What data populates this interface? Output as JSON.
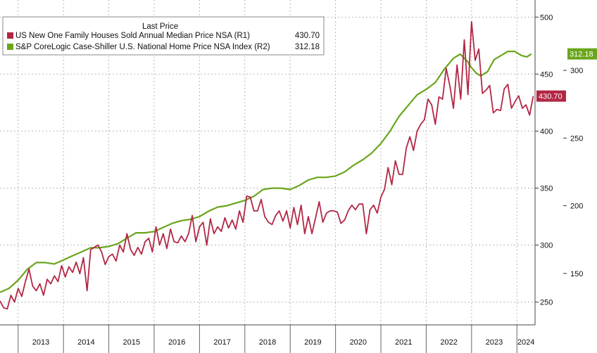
{
  "chart_data": {
    "type": "line",
    "legend": {
      "title": "Last Price",
      "position": "top-left",
      "entries": [
        {
          "label": "US New One Family Houses Sold Annual Median Price NSA  (R1)",
          "value": "430.70",
          "color": "#b22744"
        },
        {
          "label": "S&P CoreLogic Case-Shiller U.S. National Home Price NSA Index  (R2)",
          "value": "312.18",
          "color": "#6aa51c"
        }
      ]
    },
    "x_ticks": [
      "2013",
      "2014",
      "2015",
      "2016",
      "2017",
      "2018",
      "2019",
      "2020",
      "2021",
      "2022",
      "2023",
      "2024"
    ],
    "x_range": [
      2012.6,
      2024.4
    ],
    "y_axis_R1": {
      "ticks": [
        "500",
        "450",
        "400",
        "350",
        "300",
        "250"
      ],
      "range": [
        230,
        515
      ],
      "grid": true
    },
    "y_axis_R2": {
      "ticks": [
        "300",
        "250",
        "200",
        "150"
      ],
      "range": [
        112,
        352
      ]
    },
    "last_value_tags": [
      {
        "series": "R1",
        "text": "430.70",
        "value": 430.7,
        "color": "#b22744"
      },
      {
        "series": "R2",
        "text": "312.18",
        "value": 312.18,
        "color": "#6aa51c"
      }
    ],
    "series": [
      {
        "name": "US New One Family Houses Sold Annual Median Price NSA  (R1)",
        "axis": "R1",
        "color": "#b22744",
        "points": [
          [
            2012.6,
            251
          ],
          [
            2012.68,
            245
          ],
          [
            2012.76,
            244
          ],
          [
            2012.84,
            256
          ],
          [
            2012.92,
            250
          ],
          [
            2013.0,
            262
          ],
          [
            2013.08,
            255
          ],
          [
            2013.16,
            268
          ],
          [
            2013.24,
            279
          ],
          [
            2013.32,
            264
          ],
          [
            2013.4,
            260
          ],
          [
            2013.48,
            266
          ],
          [
            2013.56,
            256
          ],
          [
            2013.64,
            270
          ],
          [
            2013.72,
            266
          ],
          [
            2013.8,
            273
          ],
          [
            2013.88,
            268
          ],
          [
            2013.96,
            282
          ],
          [
            2014.04,
            272
          ],
          [
            2014.12,
            281
          ],
          [
            2014.2,
            276
          ],
          [
            2014.28,
            285
          ],
          [
            2014.36,
            275
          ],
          [
            2014.44,
            289
          ],
          [
            2014.52,
            260
          ],
          [
            2014.6,
            296
          ],
          [
            2014.68,
            298
          ],
          [
            2014.76,
            300
          ],
          [
            2014.84,
            294
          ],
          [
            2014.92,
            283
          ],
          [
            2015.0,
            290
          ],
          [
            2015.08,
            292
          ],
          [
            2015.16,
            286
          ],
          [
            2015.24,
            300
          ],
          [
            2015.32,
            294
          ],
          [
            2015.4,
            310
          ],
          [
            2015.48,
            296
          ],
          [
            2015.56,
            291
          ],
          [
            2015.64,
            298
          ],
          [
            2015.72,
            292
          ],
          [
            2015.8,
            303
          ],
          [
            2015.88,
            306
          ],
          [
            2015.96,
            294
          ],
          [
            2016.04,
            316
          ],
          [
            2016.12,
            300
          ],
          [
            2016.2,
            310
          ],
          [
            2016.28,
            297
          ],
          [
            2016.36,
            314
          ],
          [
            2016.44,
            303
          ],
          [
            2016.52,
            302
          ],
          [
            2016.6,
            308
          ],
          [
            2016.68,
            303
          ],
          [
            2016.76,
            310
          ],
          [
            2016.84,
            326
          ],
          [
            2016.92,
            303
          ],
          [
            2017.0,
            316
          ],
          [
            2017.08,
            320
          ],
          [
            2017.16,
            300
          ],
          [
            2017.24,
            323
          ],
          [
            2017.32,
            310
          ],
          [
            2017.4,
            316
          ],
          [
            2017.48,
            312
          ],
          [
            2017.56,
            324
          ],
          [
            2017.64,
            315
          ],
          [
            2017.72,
            322
          ],
          [
            2017.8,
            314
          ],
          [
            2017.88,
            330
          ],
          [
            2017.96,
            320
          ],
          [
            2018.04,
            343
          ],
          [
            2018.12,
            342
          ],
          [
            2018.2,
            330
          ],
          [
            2018.28,
            330
          ],
          [
            2018.36,
            340
          ],
          [
            2018.44,
            325
          ],
          [
            2018.52,
            320
          ],
          [
            2018.6,
            318
          ],
          [
            2018.68,
            326
          ],
          [
            2018.76,
            330
          ],
          [
            2018.84,
            321
          ],
          [
            2018.92,
            330
          ],
          [
            2019.0,
            315
          ],
          [
            2019.08,
            333
          ],
          [
            2019.16,
            318
          ],
          [
            2019.24,
            335
          ],
          [
            2019.32,
            310
          ],
          [
            2019.4,
            325
          ],
          [
            2019.48,
            310
          ],
          [
            2019.56,
            324
          ],
          [
            2019.64,
            338
          ],
          [
            2019.72,
            320
          ],
          [
            2019.8,
            328
          ],
          [
            2019.88,
            330
          ],
          [
            2019.96,
            330
          ],
          [
            2020.04,
            329
          ],
          [
            2020.12,
            319
          ],
          [
            2020.2,
            322
          ],
          [
            2020.28,
            330
          ],
          [
            2020.36,
            335
          ],
          [
            2020.44,
            331
          ],
          [
            2020.52,
            336
          ],
          [
            2020.6,
            336
          ],
          [
            2020.68,
            310
          ],
          [
            2020.76,
            331
          ],
          [
            2020.84,
            335
          ],
          [
            2020.92,
            328
          ],
          [
            2021.0,
            342
          ],
          [
            2021.08,
            349
          ],
          [
            2021.16,
            368
          ],
          [
            2021.24,
            353
          ],
          [
            2021.32,
            374
          ],
          [
            2021.4,
            362
          ],
          [
            2021.48,
            362
          ],
          [
            2021.56,
            385
          ],
          [
            2021.64,
            395
          ],
          [
            2021.72,
            383
          ],
          [
            2021.8,
            400
          ],
          [
            2021.88,
            406
          ],
          [
            2021.96,
            410
          ],
          [
            2022.04,
            428
          ],
          [
            2022.12,
            423
          ],
          [
            2022.2,
            406
          ],
          [
            2022.28,
            430
          ],
          [
            2022.36,
            428
          ],
          [
            2022.44,
            455
          ],
          [
            2022.52,
            440
          ],
          [
            2022.6,
            420
          ],
          [
            2022.68,
            458
          ],
          [
            2022.76,
            428
          ],
          [
            2022.84,
            480
          ],
          [
            2022.92,
            432
          ],
          [
            2023.0,
            496
          ],
          [
            2023.08,
            462
          ],
          [
            2023.16,
            472
          ],
          [
            2023.24,
            433
          ],
          [
            2023.32,
            436
          ],
          [
            2023.4,
            440
          ],
          [
            2023.48,
            416
          ],
          [
            2023.56,
            419
          ],
          [
            2023.64,
            418
          ],
          [
            2023.72,
            437
          ],
          [
            2023.8,
            441
          ],
          [
            2023.88,
            420
          ],
          [
            2023.96,
            426
          ],
          [
            2024.04,
            431
          ],
          [
            2024.12,
            420
          ],
          [
            2024.2,
            423
          ],
          [
            2024.28,
            414
          ],
          [
            2024.36,
            430.7
          ]
        ]
      },
      {
        "name": "S&P CoreLogic Case-Shiller U.S. National Home Price NSA Index  (R2)",
        "axis": "R2",
        "color": "#6aa51c",
        "points": [
          [
            2012.6,
            136
          ],
          [
            2012.8,
            139
          ],
          [
            2013.0,
            145
          ],
          [
            2013.2,
            153
          ],
          [
            2013.4,
            158
          ],
          [
            2013.6,
            158
          ],
          [
            2013.8,
            157
          ],
          [
            2014.0,
            160
          ],
          [
            2014.2,
            163
          ],
          [
            2014.4,
            166
          ],
          [
            2014.6,
            169
          ],
          [
            2014.8,
            169
          ],
          [
            2015.0,
            170
          ],
          [
            2015.2,
            172
          ],
          [
            2015.4,
            176
          ],
          [
            2015.6,
            180
          ],
          [
            2015.8,
            180
          ],
          [
            2016.0,
            181
          ],
          [
            2016.2,
            184
          ],
          [
            2016.4,
            187
          ],
          [
            2016.6,
            189
          ],
          [
            2016.8,
            190
          ],
          [
            2017.0,
            192
          ],
          [
            2017.2,
            196
          ],
          [
            2017.4,
            199
          ],
          [
            2017.6,
            200
          ],
          [
            2017.8,
            202
          ],
          [
            2018.0,
            204
          ],
          [
            2018.2,
            207
          ],
          [
            2018.4,
            212
          ],
          [
            2018.6,
            213
          ],
          [
            2018.8,
            213
          ],
          [
            2019.0,
            212
          ],
          [
            2019.2,
            215
          ],
          [
            2019.4,
            219
          ],
          [
            2019.6,
            221
          ],
          [
            2019.8,
            221
          ],
          [
            2020.0,
            222
          ],
          [
            2020.2,
            225
          ],
          [
            2020.4,
            230
          ],
          [
            2020.6,
            234
          ],
          [
            2020.8,
            239
          ],
          [
            2021.0,
            246
          ],
          [
            2021.2,
            255
          ],
          [
            2021.4,
            266
          ],
          [
            2021.6,
            274
          ],
          [
            2021.8,
            282
          ],
          [
            2022.0,
            286
          ],
          [
            2022.2,
            291
          ],
          [
            2022.4,
            301
          ],
          [
            2022.6,
            309
          ],
          [
            2022.75,
            312
          ],
          [
            2022.9,
            307
          ],
          [
            2023.0,
            302
          ],
          [
            2023.1,
            298
          ],
          [
            2023.2,
            296
          ],
          [
            2023.35,
            299
          ],
          [
            2023.5,
            308
          ],
          [
            2023.65,
            311
          ],
          [
            2023.8,
            314
          ],
          [
            2023.95,
            314
          ],
          [
            2024.1,
            311
          ],
          [
            2024.22,
            310
          ],
          [
            2024.32,
            312.18
          ]
        ]
      }
    ]
  }
}
